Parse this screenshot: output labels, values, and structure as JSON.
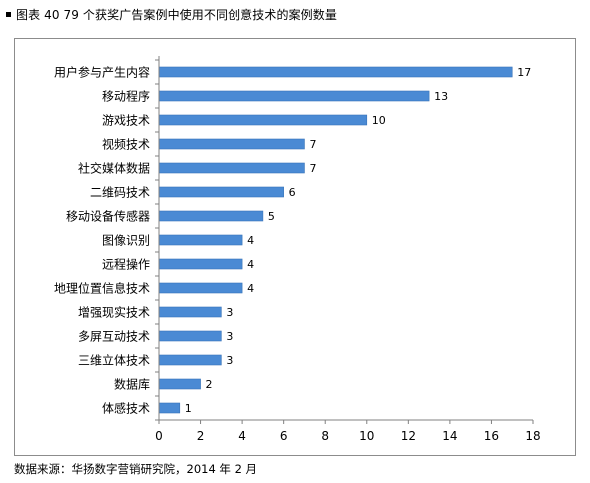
{
  "header": {
    "title": "图表 40 79 个获奖广告案例中使用不同创意技术的案例数量"
  },
  "footer": {
    "source": "数据来源：华扬数字营销研究院，2014 年 2 月"
  },
  "colors": {
    "bar": "#4a8ad4",
    "bar_stroke": "#3a74b8",
    "axis": "#808080"
  },
  "chart_data": {
    "type": "bar",
    "orientation": "horizontal",
    "title": "",
    "xlabel": "",
    "ylabel": "",
    "categories": [
      "用户参与产生内容",
      "移动程序",
      "游戏技术",
      "视频技术",
      "社交媒体数据",
      "二维码技术",
      "移动设备传感器",
      "图像识别",
      "远程操作",
      "地理位置信息技术",
      "增强现实技术",
      "多屏互动技术",
      "三维立体技术",
      "数据库",
      "体感技术"
    ],
    "values": [
      17,
      13,
      10,
      7,
      7,
      6,
      5,
      4,
      4,
      4,
      3,
      3,
      3,
      2,
      1
    ],
    "xlim": [
      0,
      18
    ],
    "xticks": [
      0,
      2,
      4,
      6,
      8,
      10,
      12,
      14,
      16,
      18
    ],
    "data_labels": true,
    "grid": false,
    "legend": "none"
  }
}
